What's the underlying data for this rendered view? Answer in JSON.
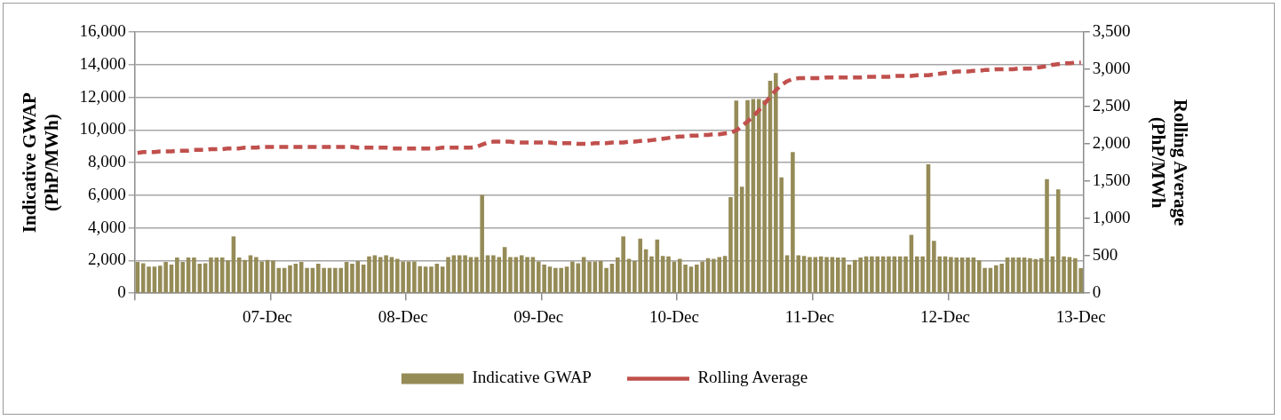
{
  "chart_data": {
    "type": "bar",
    "ylabel": "Indicative GWAP (PhP/MWh)",
    "y2label": "Rolling Average (PhP/MWh",
    "categories": [
      null,
      null,
      null,
      null,
      null,
      null,
      null,
      null,
      null,
      null,
      null,
      null,
      null,
      null,
      null,
      null,
      null,
      null,
      null,
      null,
      null,
      null,
      null,
      "07-Dec",
      null,
      null,
      null,
      null,
      null,
      null,
      null,
      null,
      null,
      null,
      null,
      null,
      null,
      null,
      null,
      null,
      null,
      null,
      null,
      null,
      null,
      null,
      null,
      "08-Dec",
      null,
      null,
      null,
      null,
      null,
      null,
      null,
      null,
      null,
      null,
      null,
      null,
      null,
      null,
      null,
      null,
      null,
      null,
      null,
      null,
      null,
      null,
      null,
      "09-Dec",
      null,
      null,
      null,
      null,
      null,
      null,
      null,
      null,
      null,
      null,
      null,
      null,
      null,
      null,
      null,
      null,
      null,
      null,
      null,
      null,
      null,
      null,
      null,
      "10-Dec",
      null,
      null,
      null,
      null,
      null,
      null,
      null,
      null,
      null,
      null,
      null,
      null,
      null,
      null,
      null,
      null,
      null,
      null,
      null,
      null,
      null,
      null,
      null,
      "11-Dec",
      null,
      null,
      null,
      null,
      null,
      null,
      null,
      null,
      null,
      null,
      null,
      null,
      null,
      null,
      null,
      null,
      null,
      null,
      null,
      null,
      null,
      null,
      null,
      "12-Dec",
      null,
      null,
      null,
      null,
      null,
      null,
      null,
      null,
      null,
      null,
      null,
      null,
      null,
      null,
      null,
      null,
      null,
      null,
      null,
      null,
      null,
      null,
      null,
      "13-Dec"
    ],
    "series": [
      {
        "name": "Indicative GWAP",
        "color": "#958b57",
        "values": [
          1920,
          1830,
          1630,
          1630,
          1680,
          1920,
          1750,
          2180,
          1920,
          2180,
          2180,
          1800,
          1830,
          2180,
          2180,
          2180,
          2010,
          3480,
          2180,
          2040,
          2320,
          2210,
          1940,
          2040,
          2000,
          1550,
          1550,
          1710,
          1800,
          1920,
          1550,
          1550,
          1800,
          1550,
          1550,
          1550,
          1550,
          1920,
          1800,
          1970,
          1750,
          2260,
          2320,
          2210,
          2320,
          2210,
          2110,
          1940,
          1940,
          1940,
          1660,
          1630,
          1630,
          1800,
          1630,
          2210,
          2320,
          2320,
          2320,
          2210,
          2210,
          6020,
          2320,
          2320,
          2210,
          2830,
          2210,
          2210,
          2320,
          2210,
          2210,
          1940,
          1750,
          1630,
          1550,
          1550,
          1630,
          1940,
          1830,
          2210,
          1940,
          1940,
          1970,
          1550,
          1800,
          2180,
          3480,
          2110,
          1970,
          3340,
          2690,
          2260,
          3290,
          2280,
          2260,
          1940,
          2110,
          1750,
          1630,
          1750,
          1940,
          2140,
          2110,
          2210,
          2280,
          5890,
          11800,
          6530,
          11820,
          11890,
          11890,
          11820,
          13010,
          13490,
          7100,
          2320,
          8650,
          2320,
          2280,
          2210,
          2210,
          2260,
          2210,
          2210,
          2180,
          2180,
          1750,
          2040,
          2180,
          2260,
          2260,
          2260,
          2260,
          2260,
          2260,
          2260,
          2260,
          3570,
          2260,
          2260,
          7890,
          3210,
          2260,
          2260,
          2210,
          2180,
          2180,
          2180,
          2180,
          2010,
          1550,
          1550,
          1710,
          1800,
          2180,
          2180,
          2180,
          2180,
          2140,
          2090,
          2140,
          6980,
          2260,
          6360,
          2260,
          2210,
          2140,
          1530
        ]
      },
      {
        "name": "Rolling Average",
        "type": "line",
        "axis": "y2",
        "color": "#c0504d",
        "line_style": "dashed",
        "marker": "none",
        "values": [
          1880,
          1890,
          1890,
          1890,
          1900,
          1900,
          1900,
          1910,
          1910,
          1910,
          1920,
          1920,
          1920,
          1930,
          1930,
          1930,
          1940,
          1940,
          1940,
          1950,
          1950,
          1950,
          1960,
          1960,
          1960,
          1960,
          1960,
          1960,
          1960,
          1960,
          1960,
          1960,
          1960,
          1960,
          1960,
          1960,
          1960,
          1960,
          1960,
          1950,
          1950,
          1950,
          1950,
          1950,
          1950,
          1940,
          1940,
          1940,
          1940,
          1940,
          1940,
          1940,
          1940,
          1940,
          1950,
          1950,
          1950,
          1950,
          1950,
          1950,
          1960,
          1990,
          2020,
          2030,
          2030,
          2030,
          2030,
          2020,
          2020,
          2020,
          2020,
          2020,
          2020,
          2020,
          2010,
          2010,
          2010,
          2010,
          2000,
          2000,
          2000,
          2010,
          2010,
          2010,
          2020,
          2020,
          2020,
          2030,
          2030,
          2040,
          2040,
          2050,
          2060,
          2070,
          2080,
          2090,
          2100,
          2100,
          2110,
          2110,
          2120,
          2120,
          2130,
          2130,
          2140,
          2150,
          2180,
          2240,
          2300,
          2370,
          2450,
          2540,
          2630,
          2720,
          2790,
          2840,
          2870,
          2880,
          2880,
          2880,
          2880,
          2880,
          2890,
          2890,
          2890,
          2890,
          2890,
          2890,
          2890,
          2900,
          2900,
          2900,
          2900,
          2900,
          2910,
          2910,
          2910,
          2910,
          2920,
          2920,
          2920,
          2930,
          2940,
          2950,
          2960,
          2970,
          2970,
          2970,
          2980,
          2980,
          2990,
          2990,
          3000,
          3000,
          3000,
          3000,
          3010,
          3010,
          3010,
          3020,
          3030,
          3040,
          3060,
          3070,
          3080,
          3080,
          3090,
          3090
        ]
      }
    ],
    "ylim": [
      0,
      16000
    ],
    "yticks": [
      0,
      {
        "value": 2000,
        "label": "2,000"
      },
      {
        "value": 4000,
        "label": "4,000"
      },
      {
        "value": 6000,
        "label": "6,000"
      },
      {
        "value": 8000,
        "label": "8,000"
      },
      {
        "value": 10000,
        "label": "10,000"
      },
      {
        "value": 12000,
        "label": "12,000"
      },
      {
        "value": 14000,
        "label": "14,000"
      },
      {
        "value": 16000,
        "label": "16,000"
      }
    ],
    "y2lim": [
      0,
      3500
    ],
    "y2ticks": [
      0,
      500,
      {
        "value": 1000,
        "label": "1,000"
      },
      {
        "value": 1500,
        "label": "1,500"
      },
      {
        "value": 2000,
        "label": "2,000"
      },
      {
        "value": 2500,
        "label": "2,500"
      },
      {
        "value": 3000,
        "label": "3,000"
      },
      {
        "value": 3500,
        "label": "3,500"
      }
    ],
    "grid": "y",
    "legend": "bottom"
  }
}
